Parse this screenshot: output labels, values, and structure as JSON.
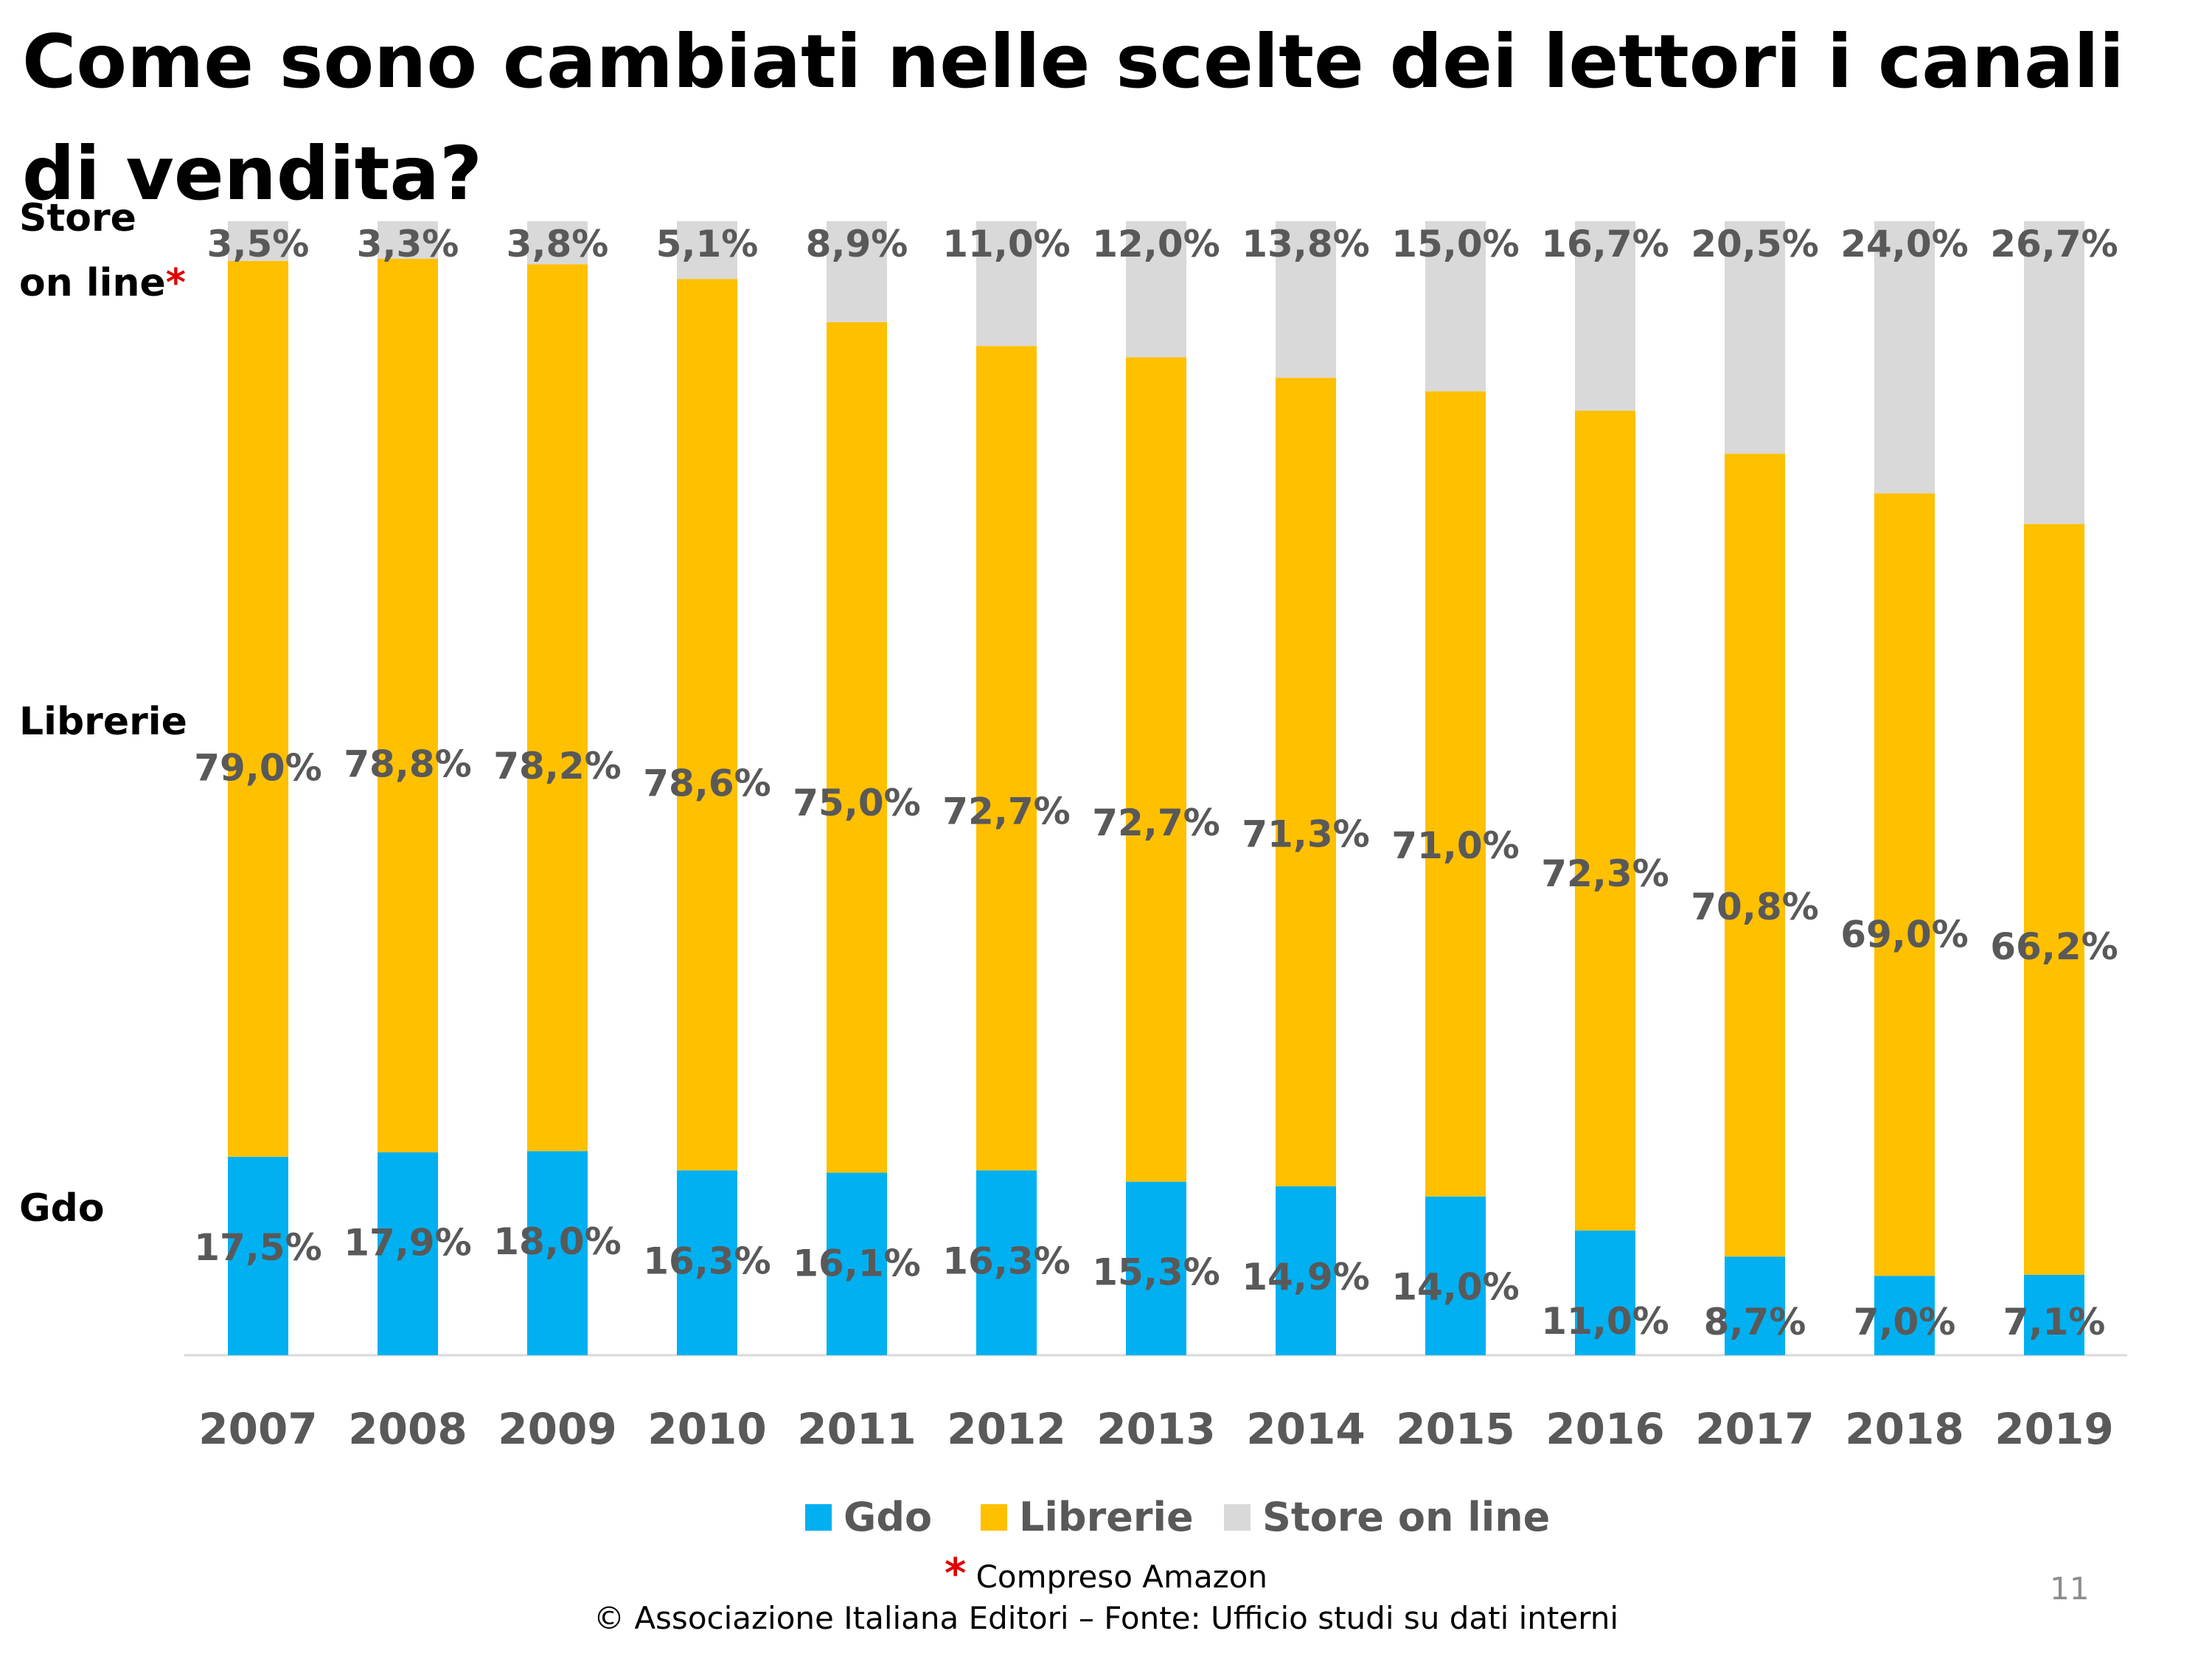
{
  "slide": {
    "title": "Come sono cambiati nelle scelte dei lettori i canali di vendita?",
    "side_labels": {
      "store_line1": "Store",
      "store_line2": "on line",
      "asterisk": "*",
      "librerie": "Librerie",
      "gdo": "Gdo"
    },
    "footnote_asterisk": "*",
    "footnote": "Compreso Amazon",
    "source": "© Associazione Italiana Editori – Fonte: Ufficio studi su dati interni",
    "page_number": "11"
  },
  "colors": {
    "gdo": "#00B0F0",
    "librerie": "#FFC000",
    "store": "#D9D9D9",
    "data_label": "#595959",
    "axis_label": "#595959"
  },
  "chart_data": {
    "type": "bar",
    "stacked": true,
    "title": "",
    "xlabel": "",
    "ylabel": "",
    "ylim": [
      0,
      100
    ],
    "grid": false,
    "legend_position": "bottom",
    "categories": [
      "2007",
      "2008",
      "2009",
      "2010",
      "2011",
      "2012",
      "2013",
      "2014",
      "2015",
      "2016",
      "2017",
      "2018",
      "2019"
    ],
    "series": [
      {
        "name": "Gdo",
        "values": [
          17.5,
          17.9,
          18.0,
          16.3,
          16.1,
          16.3,
          15.3,
          14.9,
          14.0,
          11.0,
          8.7,
          7.0,
          7.1
        ],
        "labels": [
          "17,5%",
          "17,9%",
          "18,0%",
          "16,3%",
          "16,1%",
          "16,3%",
          "15,3%",
          "14,9%",
          "14,0%",
          "11,0%",
          "8,7%",
          "7,0%",
          "7,1%"
        ]
      },
      {
        "name": "Librerie",
        "values": [
          79.0,
          78.8,
          78.2,
          78.6,
          75.0,
          72.7,
          72.7,
          71.3,
          71.0,
          72.3,
          70.8,
          69.0,
          66.2
        ],
        "labels": [
          "79,0%",
          "78,8%",
          "78,2%",
          "78,6%",
          "75,0%",
          "72,7%",
          "72,7%",
          "71,3%",
          "71,0%",
          "72,3%",
          "70,8%",
          "69,0%",
          "66,2%"
        ]
      },
      {
        "name": "Store on line",
        "values": [
          3.5,
          3.3,
          3.8,
          5.1,
          8.9,
          11.0,
          12.0,
          13.8,
          15.0,
          16.7,
          20.5,
          24.0,
          26.7
        ],
        "labels": [
          "3,5%",
          "3,3%",
          "3,8%",
          "5,1%",
          "8,9%",
          "11,0%",
          "12,0%",
          "13,8%",
          "15,0%",
          "16,7%",
          "20,5%",
          "24,0%",
          "26,7%"
        ]
      }
    ]
  }
}
